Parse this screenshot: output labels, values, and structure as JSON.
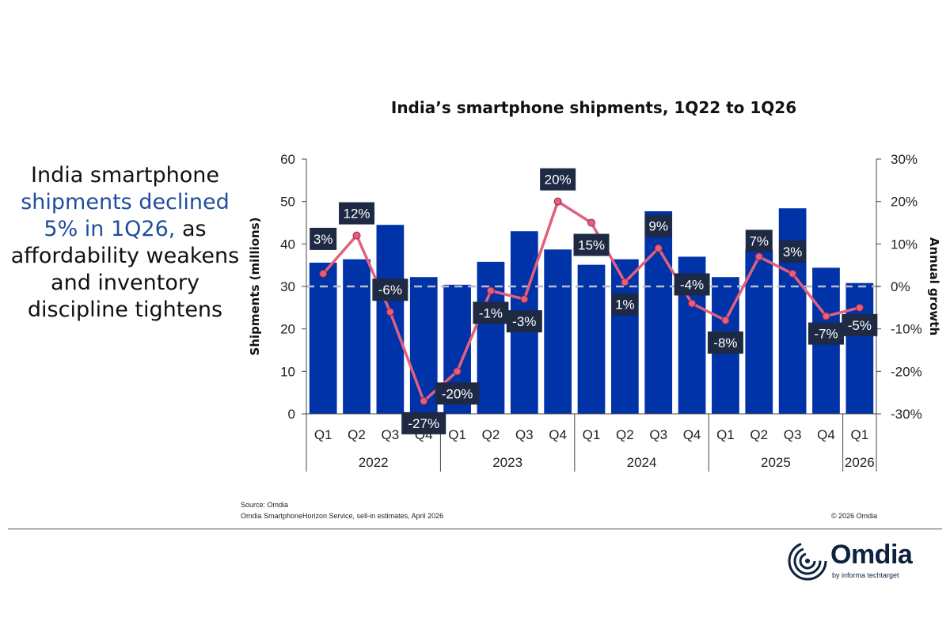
{
  "headline": {
    "part1": "India smartphone",
    "part2": "shipments declined 5% in 1Q26,",
    "part3": "as affordability weakens and inventory discipline tightens",
    "highlight_color": "#1f4e9c"
  },
  "footer": {
    "source": "Source: Omdia",
    "note": "Omdia SmartphoneHorizon Service, sell-in estimates, April 2026",
    "copyright": "© 2026 Omdia"
  },
  "logo": {
    "name": "Omdia",
    "tagline": "by informa techtarget"
  },
  "chart_data": {
    "type": "bar+line",
    "title": "India’s smartphone shipments, 1Q22 to 1Q26",
    "ylabel": "Shipments (millions)",
    "y2label": "Annual growth",
    "ylim": [
      0,
      60
    ],
    "yticks": [
      0,
      10,
      20,
      30,
      40,
      50,
      60
    ],
    "y2lim": [
      -30,
      30
    ],
    "y2ticks": [
      "-30%",
      "-20%",
      "-10%",
      "0%",
      "10%",
      "20%",
      "30%"
    ],
    "categories": [
      "Q1",
      "Q2",
      "Q3",
      "Q4",
      "Q1",
      "Q2",
      "Q3",
      "Q4",
      "Q1",
      "Q2",
      "Q3",
      "Q4",
      "Q1",
      "Q2",
      "Q3",
      "Q4",
      "Q1"
    ],
    "groups": [
      {
        "label": "2022",
        "count": 4
      },
      {
        "label": "2023",
        "count": 4
      },
      {
        "label": "2024",
        "count": 4
      },
      {
        "label": "2025",
        "count": 4
      },
      {
        "label": "2026",
        "count": 1
      }
    ],
    "series": [
      {
        "kind": "bar",
        "color": "#0033a8",
        "values": [
          35.6,
          36.4,
          44.5,
          32.2,
          30.4,
          35.8,
          43.0,
          38.7,
          35.1,
          36.4,
          47.7,
          37.0,
          32.2,
          38.7,
          48.4,
          34.4,
          30.8
        ]
      },
      {
        "kind": "line",
        "axis": "right",
        "color": "#e0607e",
        "values": [
          3,
          12,
          -6,
          -27,
          -20,
          -1,
          -3,
          20,
          15,
          1,
          9,
          -4,
          -8,
          7,
          3,
          -7,
          -5
        ],
        "labels": [
          "3%",
          "12%",
          "-6%",
          "-27%",
          "-20%",
          "-1%",
          "-3%",
          "20%",
          "15%",
          "1%",
          "9%",
          "-4%",
          "-8%",
          "7%",
          "3%",
          "-7%",
          "-5%"
        ]
      }
    ],
    "zero_growth_line": "dashed",
    "grid": false
  }
}
